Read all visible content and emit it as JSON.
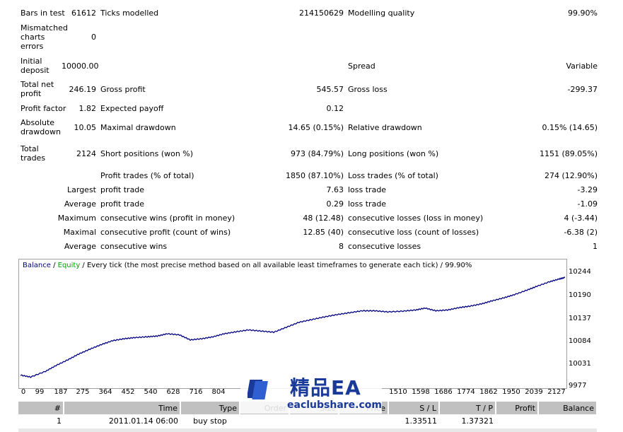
{
  "stats": {
    "bars_in_test_label": "Bars in test",
    "bars_in_test": "61612",
    "ticks_modelled_label": "Ticks modelled",
    "ticks_modelled": "214150629",
    "modelling_quality_label": "Modelling quality",
    "modelling_quality": "99.90%",
    "mismatched_label_1": "Mismatched",
    "mismatched_label_2": "charts",
    "mismatched_label_3": "errors",
    "mismatched": "0",
    "initial_deposit_label_1": "Initial",
    "initial_deposit_label_2": "deposit",
    "initial_deposit": "10000.00",
    "spread_label": "Spread",
    "spread": "Variable",
    "total_net_profit_label_1": "Total net",
    "total_net_profit_label_2": "profit",
    "total_net_profit": "246.19",
    "gross_profit_label": "Gross profit",
    "gross_profit": "545.57",
    "gross_loss_label": "Gross loss",
    "gross_loss": "-299.37",
    "profit_factor_label": "Profit factor",
    "profit_factor": "1.82",
    "expected_payoff_label": "Expected payoff",
    "expected_payoff": "0.12",
    "absolute_drawdown_label_1": "Absolute",
    "absolute_drawdown_label_2": "drawdown",
    "absolute_drawdown": "10.05",
    "maximal_drawdown_label": "Maximal drawdown",
    "maximal_drawdown": "14.65 (0.15%)",
    "relative_drawdown_label": "Relative drawdown",
    "relative_drawdown": "0.15% (14.65)",
    "total_trades_label_1": "Total",
    "total_trades_label_2": "trades",
    "total_trades": "2124",
    "short_positions_label": "Short positions (won %)",
    "short_positions": "973 (84.79%)",
    "long_positions_label": "Long positions (won %)",
    "long_positions": "1151 (89.05%)",
    "profit_trades_label": "Profit trades (% of total)",
    "profit_trades": "1850 (87.10%)",
    "loss_trades_label": "Loss trades (% of total)",
    "loss_trades": "274 (12.90%)",
    "largest_label": "Largest",
    "largest_profit_label": "profit trade",
    "largest_profit": "7.63",
    "largest_loss_label": "loss trade",
    "largest_loss": "-3.29",
    "average_label": "Average",
    "average_profit_label": "profit trade",
    "average_profit": "0.29",
    "average_loss_label": "loss trade",
    "average_loss": "-1.09",
    "maximum_label": "Maximum",
    "max_cons_wins_label": "consecutive wins (profit in money)",
    "max_cons_wins": "48 (12.48)",
    "max_cons_losses_label": "consecutive losses (loss in money)",
    "max_cons_losses": "4 (-3.44)",
    "maximal_label": "Maximal",
    "maximal_cons_profit_label": "consecutive profit (count of wins)",
    "maximal_cons_profit": "12.85 (40)",
    "maximal_cons_loss_label": "consecutive loss (count of losses)",
    "maximal_cons_loss": "-6.38 (2)",
    "average2_label": "Average",
    "avg_cons_wins_label": "consecutive wins",
    "avg_cons_wins": "8",
    "avg_cons_losses_label": "consecutive losses",
    "avg_cons_losses": "1"
  },
  "legend": {
    "balance": "Balance",
    "sep": " / ",
    "equity": "Equity",
    "text": " / Every tick (the most precise method based on all available least timeframes to generate each tick) / 99.90%"
  },
  "chart_data": {
    "type": "line",
    "series_color": "#000080",
    "x_ticks": [
      "0",
      "99",
      "187",
      "275",
      "364",
      "452",
      "540",
      "628",
      "716",
      "804",
      "1510",
      "1598",
      "1686",
      "1774",
      "1862",
      "1950",
      "2039",
      "2127"
    ],
    "y_ticks": [
      "10244",
      "10190",
      "10137",
      "10084",
      "10031",
      "9977"
    ],
    "xlim": [
      0,
      2150
    ],
    "ylim": [
      9977,
      10265
    ],
    "points": [
      [
        0,
        10000
      ],
      [
        40,
        9995
      ],
      [
        99,
        10010
      ],
      [
        140,
        10025
      ],
      [
        187,
        10040
      ],
      [
        230,
        10055
      ],
      [
        275,
        10068
      ],
      [
        320,
        10080
      ],
      [
        364,
        10090
      ],
      [
        410,
        10095
      ],
      [
        452,
        10098
      ],
      [
        500,
        10100
      ],
      [
        540,
        10102
      ],
      [
        580,
        10108
      ],
      [
        628,
        10105
      ],
      [
        670,
        10092
      ],
      [
        716,
        10095
      ],
      [
        760,
        10100
      ],
      [
        804,
        10108
      ],
      [
        850,
        10113
      ],
      [
        900,
        10118
      ],
      [
        950,
        10115
      ],
      [
        1000,
        10112
      ],
      [
        1050,
        10125
      ],
      [
        1100,
        10138
      ],
      [
        1150,
        10145
      ],
      [
        1200,
        10152
      ],
      [
        1250,
        10158
      ],
      [
        1300,
        10163
      ],
      [
        1350,
        10168
      ],
      [
        1400,
        10168
      ],
      [
        1450,
        10165
      ],
      [
        1510,
        10167
      ],
      [
        1560,
        10170
      ],
      [
        1598,
        10175
      ],
      [
        1640,
        10168
      ],
      [
        1686,
        10170
      ],
      [
        1730,
        10176
      ],
      [
        1774,
        10180
      ],
      [
        1820,
        10186
      ],
      [
        1862,
        10194
      ],
      [
        1910,
        10202
      ],
      [
        1950,
        10210
      ],
      [
        2000,
        10222
      ],
      [
        2039,
        10232
      ],
      [
        2090,
        10244
      ],
      [
        2127,
        10251
      ],
      [
        2150,
        10255
      ]
    ]
  },
  "orders": {
    "headers": [
      "#",
      "Time",
      "Type",
      "Order",
      "Size",
      "Price",
      "S / L",
      "T / P",
      "Profit",
      "Balance"
    ],
    "rows": [
      [
        "1",
        "2011.01.14 06:00",
        "buy stop",
        "",
        "",
        "",
        "1.33511",
        "1.37321",
        "",
        ""
      ]
    ]
  },
  "watermark": {
    "title": "精品EA",
    "site": "eaclubshare.com"
  }
}
